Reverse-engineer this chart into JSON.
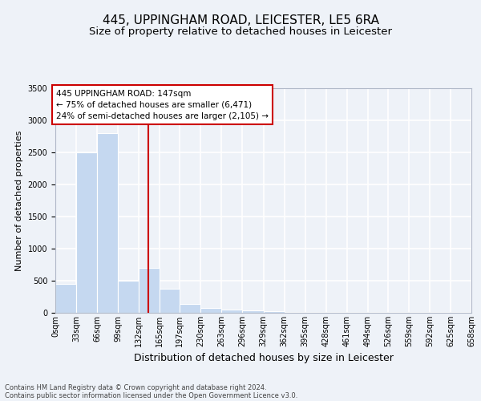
{
  "title_line1": "445, UPPINGHAM ROAD, LEICESTER, LE5 6RA",
  "title_line2": "Size of property relative to detached houses in Leicester",
  "xlabel": "Distribution of detached houses by size in Leicester",
  "ylabel": "Number of detached properties",
  "bar_color": "#c5d8f0",
  "bins": [
    0,
    33,
    66,
    99,
    132,
    165,
    197,
    230,
    263,
    296,
    329,
    362,
    395,
    428,
    461,
    494,
    526,
    559,
    592,
    625,
    658
  ],
  "bin_labels": [
    "0sqm",
    "33sqm",
    "66sqm",
    "99sqm",
    "132sqm",
    "165sqm",
    "197sqm",
    "230sqm",
    "263sqm",
    "296sqm",
    "329sqm",
    "362sqm",
    "395sqm",
    "428sqm",
    "461sqm",
    "494sqm",
    "526sqm",
    "559sqm",
    "592sqm",
    "625sqm",
    "658sqm"
  ],
  "bar_heights": [
    450,
    2500,
    2800,
    500,
    700,
    380,
    140,
    80,
    50,
    40,
    30,
    0,
    0,
    0,
    0,
    0,
    0,
    0,
    0,
    0
  ],
  "vline_color": "#cc0000",
  "vline_x": 147,
  "annotation_text": "445 UPPINGHAM ROAD: 147sqm\n← 75% of detached houses are smaller (6,471)\n24% of semi-detached houses are larger (2,105) →",
  "annotation_box_color": "#cc0000",
  "ylim": [
    0,
    3500
  ],
  "yticks": [
    0,
    500,
    1000,
    1500,
    2000,
    2500,
    3000,
    3500
  ],
  "footer_line1": "Contains HM Land Registry data © Crown copyright and database right 2024.",
  "footer_line2": "Contains public sector information licensed under the Open Government Licence v3.0.",
  "bg_color": "#eef2f8",
  "plot_bg_color": "#eef2f8",
  "grid_color": "#ffffff",
  "title_fontsize": 11,
  "subtitle_fontsize": 9.5,
  "ylabel_fontsize": 8,
  "xlabel_fontsize": 9,
  "tick_fontsize": 7,
  "footer_fontsize": 6,
  "annotation_fontsize": 7.5
}
